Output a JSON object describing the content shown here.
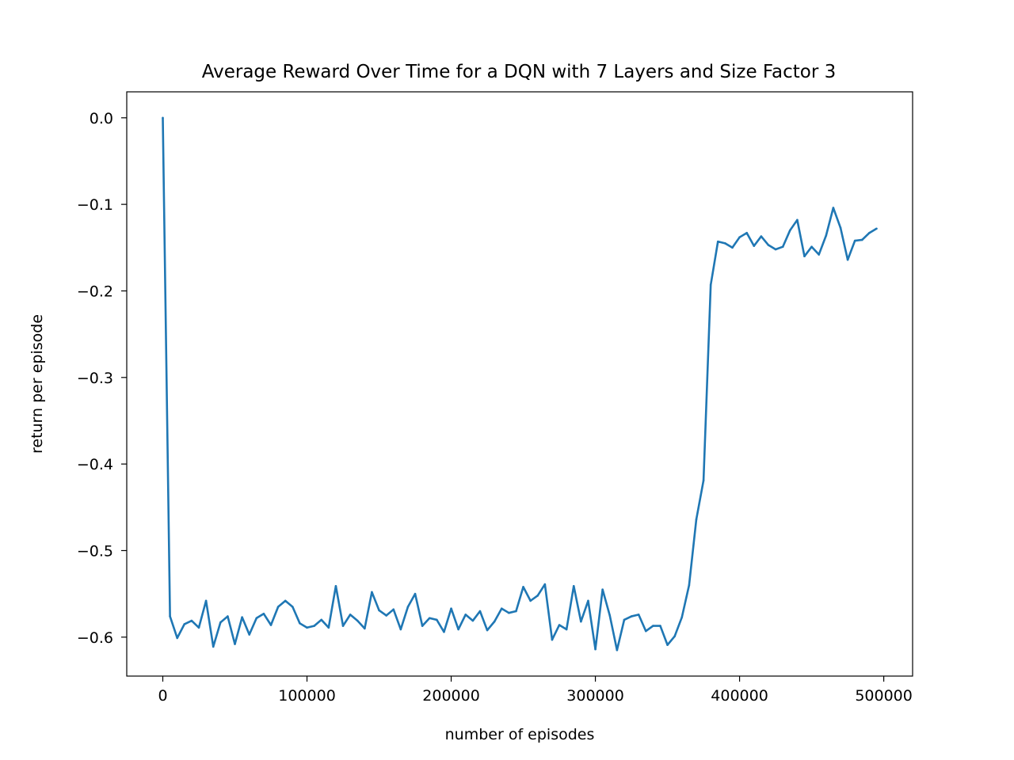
{
  "chart_data": {
    "type": "line",
    "title": "Average Reward Over Time for a DQN with 7 Layers and Size Factor 3",
    "xlabel": "number of episodes",
    "ylabel": "return per episode",
    "xlim": [
      -25000,
      520000
    ],
    "ylim": [
      -0.645,
      0.03
    ],
    "xticks": [
      0,
      100000,
      200000,
      300000,
      400000,
      500000
    ],
    "xtick_labels": [
      "0",
      "100000",
      "200000",
      "300000",
      "400000",
      "500000"
    ],
    "yticks": [
      0.0,
      -0.1,
      -0.2,
      -0.3,
      -0.4,
      -0.5,
      -0.6
    ],
    "ytick_labels": [
      "0.0",
      "−0.1",
      "−0.2",
      "−0.3",
      "−0.4",
      "−0.5",
      "−0.6"
    ],
    "grid": false,
    "legend": "none",
    "series": [
      {
        "color": "#1f77b4",
        "x": [
          0,
          5000,
          10000,
          15000,
          20000,
          25000,
          30000,
          35000,
          40000,
          45000,
          50000,
          55000,
          60000,
          65000,
          70000,
          75000,
          80000,
          85000,
          90000,
          95000,
          100000,
          105000,
          110000,
          115000,
          120000,
          125000,
          130000,
          135000,
          140000,
          145000,
          150000,
          155000,
          160000,
          165000,
          170000,
          175000,
          180000,
          185000,
          190000,
          195000,
          200000,
          205000,
          210000,
          215000,
          220000,
          225000,
          230000,
          235000,
          240000,
          245000,
          250000,
          255000,
          260000,
          265000,
          270000,
          275000,
          280000,
          285000,
          290000,
          295000,
          300000,
          305000,
          310000,
          315000,
          320000,
          325000,
          330000,
          335000,
          340000,
          345000,
          350000,
          355000,
          360000,
          365000,
          370000,
          375000,
          380000,
          385000,
          390000,
          395000,
          400000,
          405000,
          410000,
          415000,
          420000,
          425000,
          430000,
          435000,
          440000,
          445000,
          450000,
          455000,
          460000,
          465000,
          470000,
          475000,
          480000,
          485000,
          490000,
          495000
        ],
        "y": [
          0.0,
          -0.576,
          -0.601,
          -0.585,
          -0.581,
          -0.589,
          -0.558,
          -0.611,
          -0.583,
          -0.576,
          -0.608,
          -0.577,
          -0.597,
          -0.578,
          -0.573,
          -0.586,
          -0.565,
          -0.558,
          -0.565,
          -0.584,
          -0.589,
          -0.587,
          -0.58,
          -0.589,
          -0.541,
          -0.587,
          -0.574,
          -0.581,
          -0.59,
          -0.548,
          -0.569,
          -0.575,
          -0.568,
          -0.591,
          -0.565,
          -0.55,
          -0.587,
          -0.578,
          -0.58,
          -0.594,
          -0.567,
          -0.591,
          -0.574,
          -0.581,
          -0.57,
          -0.592,
          -0.582,
          -0.567,
          -0.572,
          -0.57,
          -0.542,
          -0.558,
          -0.552,
          -0.539,
          -0.603,
          -0.586,
          -0.591,
          -0.541,
          -0.582,
          -0.558,
          -0.614,
          -0.545,
          -0.575,
          -0.615,
          -0.58,
          -0.576,
          -0.574,
          -0.593,
          -0.587,
          -0.587,
          -0.609,
          -0.599,
          -0.577,
          -0.54,
          -0.464,
          -0.419,
          -0.193,
          -0.143,
          -0.145,
          -0.15,
          -0.138,
          -0.133,
          -0.148,
          -0.137,
          -0.147,
          -0.152,
          -0.149,
          -0.13,
          -0.118,
          -0.16,
          -0.149,
          -0.158,
          -0.136,
          -0.104,
          -0.127,
          -0.164,
          -0.142,
          -0.141,
          -0.133,
          -0.128
        ]
      }
    ]
  }
}
